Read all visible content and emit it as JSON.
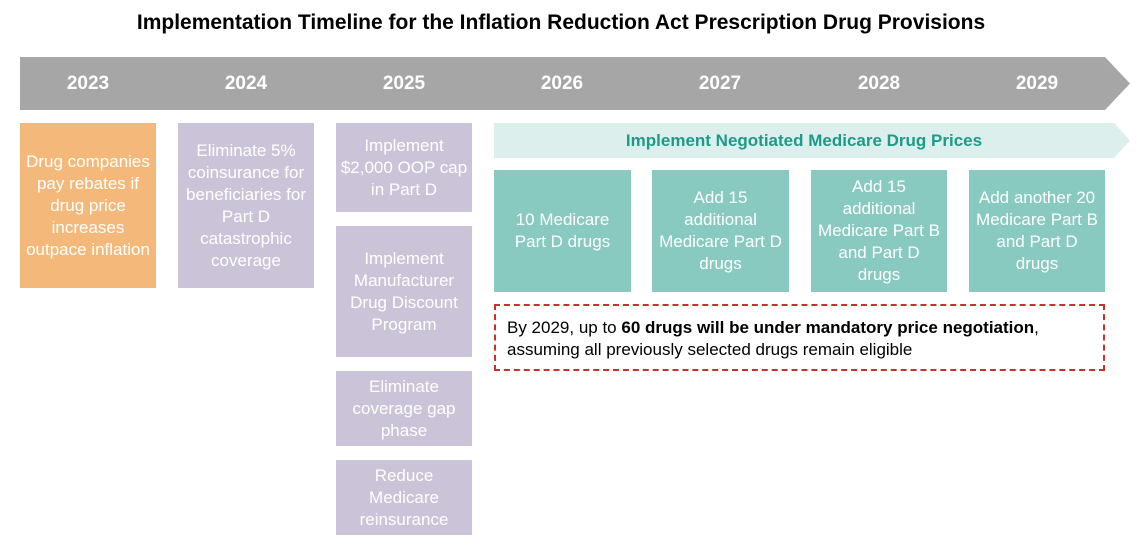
{
  "title": "Implementation Timeline for the Inflation Reduction Act Prescription Drug Provisions",
  "years": [
    "2023",
    "2024",
    "2025",
    "2026",
    "2027",
    "2028",
    "2029"
  ],
  "y2023": {
    "box1": "Drug companies pay rebates if drug price increases outpace inflation"
  },
  "y2024": {
    "box1": "Eliminate 5% coinsurance for beneficiaries for Part D catastrophic coverage"
  },
  "y2025": {
    "box1": "Implement $2,000 OOP cap in Part D",
    "box2": "Implement Manufacturer Drug Discount Program",
    "box3": "Eliminate coverage gap phase",
    "box4": "Reduce Medicare reinsurance"
  },
  "negotiation_banner": "Implement Negotiated Medicare Drug Prices",
  "drug_boxes": [
    "10 Medicare Part D drugs",
    "Add 15 additional Medicare Part D drugs",
    "Add 15 additional Medicare Part B and Part D drugs",
    "Add another 20 Medicare Part B and Part D drugs"
  ],
  "note": {
    "prefix": "By 2029, up to ",
    "bold": "60 drugs will be under mandatory price negotiation",
    "suffix": ", assuming all previously selected drugs remain eligible"
  },
  "colors": {
    "banner": "#a6a6a6",
    "orange": "#f4b97a",
    "lavender": "#cbc3d8",
    "teal": "#88c9c0",
    "teal_light": "#dcefed",
    "teal_text": "#1d9a8a",
    "note_border": "#c9302c"
  }
}
